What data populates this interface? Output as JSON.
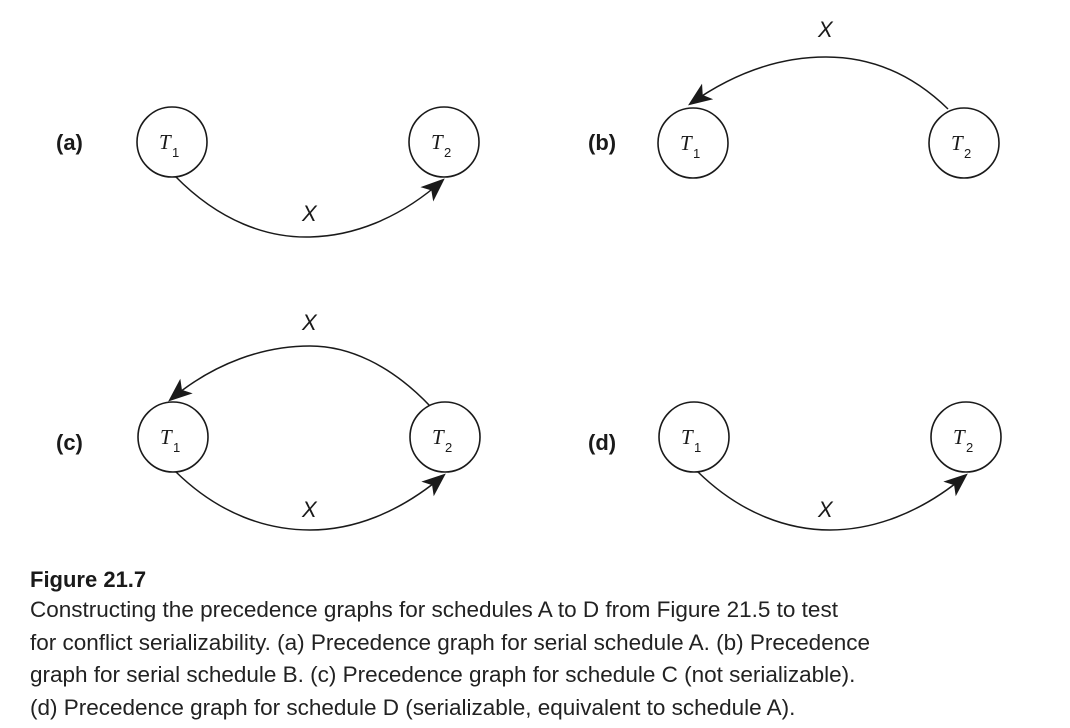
{
  "panels": [
    {
      "label": "(a)",
      "nodes": [
        {
          "id": "T1",
          "main": "T",
          "sub": "1"
        },
        {
          "id": "T2",
          "main": "T",
          "sub": "2"
        }
      ],
      "edges": [
        {
          "from": "T1",
          "to": "T2",
          "label": "X"
        }
      ]
    },
    {
      "label": "(b)",
      "nodes": [
        {
          "id": "T1",
          "main": "T",
          "sub": "1"
        },
        {
          "id": "T2",
          "main": "T",
          "sub": "2"
        }
      ],
      "edges": [
        {
          "from": "T2",
          "to": "T1",
          "label": "X"
        }
      ]
    },
    {
      "label": "(c)",
      "nodes": [
        {
          "id": "T1",
          "main": "T",
          "sub": "1"
        },
        {
          "id": "T2",
          "main": "T",
          "sub": "2"
        }
      ],
      "edges": [
        {
          "from": "T2",
          "to": "T1",
          "label": "X"
        },
        {
          "from": "T1",
          "to": "T2",
          "label": "X"
        }
      ]
    },
    {
      "label": "(d)",
      "nodes": [
        {
          "id": "T1",
          "main": "T",
          "sub": "1"
        },
        {
          "id": "T2",
          "main": "T",
          "sub": "2"
        }
      ],
      "edges": [
        {
          "from": "T1",
          "to": "T2",
          "label": "X"
        }
      ]
    }
  ],
  "caption": {
    "title": "Figure 21.7",
    "lines": [
      "Constructing the precedence graphs for schedules A to D from Figure 21.5 to test",
      "for conflict serializability. (a) Precedence graph for serial schedule A. (b) Precedence",
      "graph for serial schedule B. (c) Precedence graph for schedule C (not serializable).",
      "(d) Precedence graph for schedule D (serializable, equivalent to schedule A)."
    ]
  }
}
